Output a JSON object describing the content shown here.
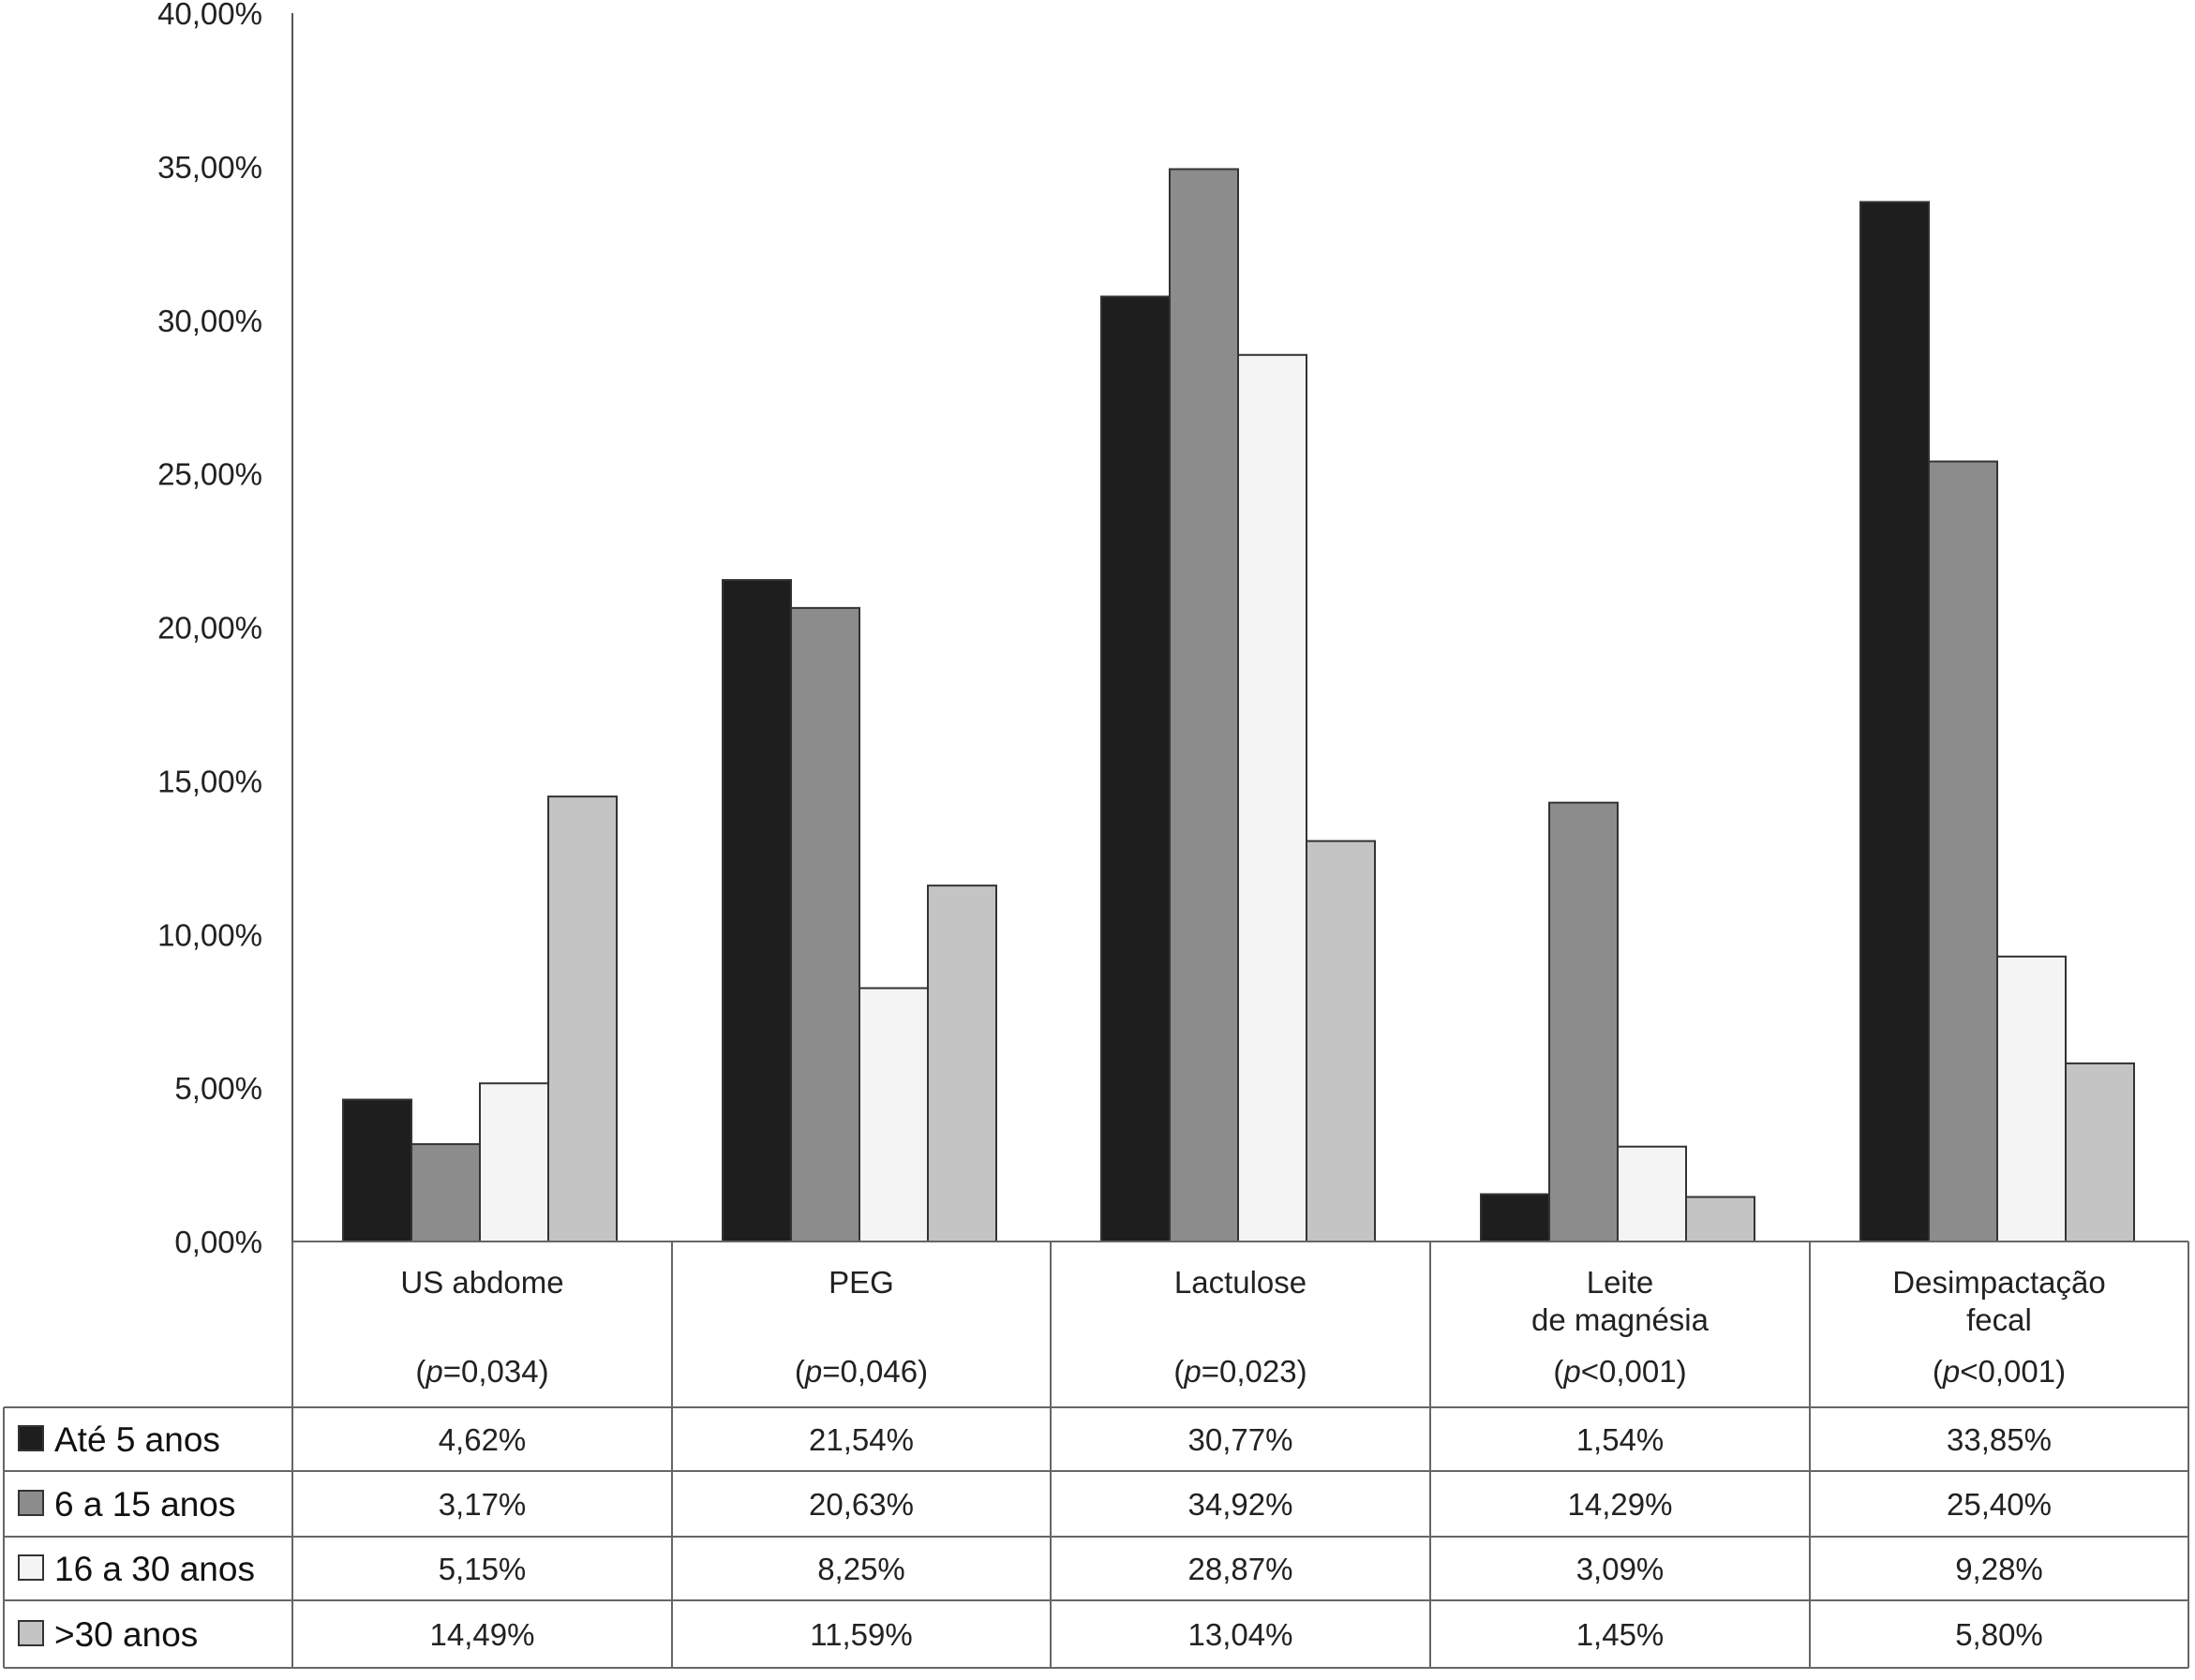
{
  "chart_data": {
    "type": "bar",
    "title": "",
    "xlabel": "",
    "ylabel": "",
    "ylim": [
      0,
      40
    ],
    "y_ticks": [
      "0,00%",
      "5,00%",
      "10,00%",
      "15,00%",
      "20,00%",
      "25,00%",
      "30,00%",
      "35,00%",
      "40,00%"
    ],
    "categories": [
      {
        "label_lines": [
          "US abdome"
        ],
        "p_prefix": "p",
        "p_rest": "=0,034"
      },
      {
        "label_lines": [
          "PEG"
        ],
        "p_prefix": "p",
        "p_rest": "=0,046"
      },
      {
        "label_lines": [
          "Lactulose"
        ],
        "p_prefix": "p",
        "p_rest": "=0,023"
      },
      {
        "label_lines": [
          "Leite",
          "de magnésia"
        ],
        "p_prefix": "p",
        "p_rest": "<0,001"
      },
      {
        "label_lines": [
          "Desimpactação",
          "fecal"
        ],
        "p_prefix": "p",
        "p_rest": "<0,001"
      }
    ],
    "series": [
      {
        "name": "Até 5 anos",
        "color": "#1e1e1e",
        "values": [
          4.62,
          21.54,
          30.77,
          1.54,
          33.85
        ],
        "labels": [
          "4,62%",
          "21,54%",
          "30,77%",
          "1,54%",
          "33,85%"
        ]
      },
      {
        "name": "6 a 15 anos",
        "color": "#8c8c8c",
        "values": [
          3.17,
          20.63,
          34.92,
          14.29,
          25.4
        ],
        "labels": [
          "3,17%",
          "20,63%",
          "34,92%",
          "14,29%",
          "25,40%"
        ]
      },
      {
        "name": "16 a 30 anos",
        "color": "#f4f4f4",
        "values": [
          5.15,
          8.25,
          28.87,
          3.09,
          9.28
        ],
        "labels": [
          "5,15%",
          "8,25%",
          "28,87%",
          "3,09%",
          "9,28%"
        ]
      },
      {
        "name": ">30 anos",
        "color": "#c4c4c4",
        "values": [
          14.49,
          11.59,
          13.04,
          1.45,
          5.8
        ],
        "labels": [
          "14,49%",
          "11,59%",
          "13,04%",
          "1,45%",
          "5,80%"
        ]
      }
    ],
    "grid": false,
    "legend": "data table below chart"
  }
}
